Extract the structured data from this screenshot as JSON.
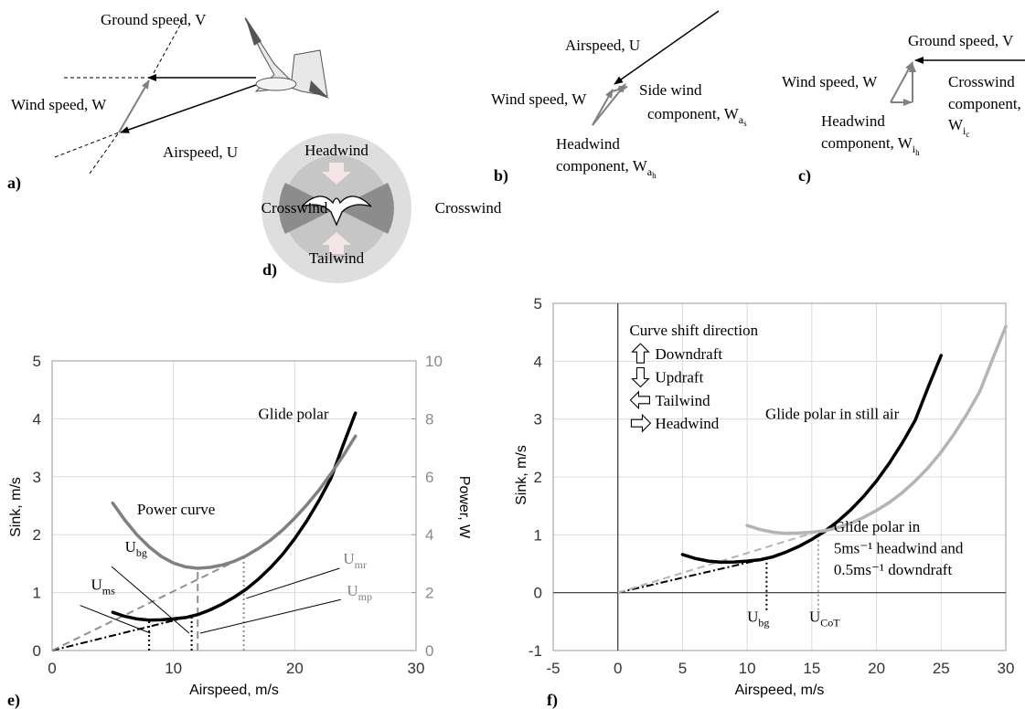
{
  "panels": {
    "a": "a)",
    "b": "b)",
    "c": "c)",
    "d": "d)"
  },
  "diagram_a": {
    "ground_speed": "Ground speed, V",
    "wind_speed": "Wind speed, W",
    "airspeed": "Airspeed, U"
  },
  "diagram_b": {
    "airspeed": "Airspeed, U",
    "wind_speed": "Wind speed, W",
    "side_wind": [
      "Side wind",
      "component, W"
    ],
    "side_wind_sub": "a",
    "side_wind_subsub": "s",
    "headwind": [
      "Headwind",
      "component, W"
    ],
    "headwind_sub": "a",
    "headwind_subsub": "h"
  },
  "diagram_c": {
    "ground_speed": "Ground speed, V",
    "wind_speed": "Wind speed, W",
    "crosswind": [
      "Crosswind",
      "component,",
      "W"
    ],
    "crosswind_sub": "i",
    "crosswind_subsub": "c",
    "headwind": [
      "Headwind",
      "component, W"
    ],
    "headwind_sub": "i",
    "headwind_subsub": "h"
  },
  "diagram_d": {
    "headwind": "Headwind",
    "crosswind_left": "Crosswind",
    "crosswind_right": "Crosswind",
    "tailwind": "Tailwind"
  },
  "chart_data": [
    {
      "type": "line",
      "panel": "e)",
      "xlabel": "Airspeed, m/s",
      "ylabel": "Sink, m/s",
      "y2label": "Power, W",
      "xlim": [
        0,
        30
      ],
      "xticks": [
        0,
        10,
        20,
        30
      ],
      "ylim": [
        0,
        5
      ],
      "yticks": [
        0,
        1,
        2,
        3,
        4,
        5
      ],
      "y2lim": [
        0,
        10
      ],
      "y2ticks": [
        0,
        2,
        4,
        6,
        8,
        10
      ],
      "grid": true,
      "series": [
        {
          "name": "Glide polar",
          "color": "#000000",
          "x": [
            5,
            6,
            7,
            8,
            9,
            10,
            11,
            12,
            13,
            14,
            15,
            16,
            17,
            18,
            19,
            20,
            21,
            22,
            23,
            24,
            25
          ],
          "values": [
            0.66,
            0.59,
            0.545,
            0.525,
            0.53,
            0.545,
            0.57,
            0.62,
            0.7,
            0.8,
            0.92,
            1.06,
            1.23,
            1.43,
            1.66,
            1.93,
            2.24,
            2.59,
            2.98,
            3.55,
            4.1
          ]
        },
        {
          "name": "Power curve",
          "color": "#808080",
          "axis": "y2",
          "x": [
            5,
            6,
            7,
            8,
            9,
            10,
            11,
            12,
            13,
            14,
            15,
            16,
            17,
            18,
            19,
            20,
            21,
            22,
            23,
            24,
            25
          ],
          "values": [
            5.09,
            4.5,
            3.99,
            3.58,
            3.25,
            3.02,
            2.89,
            2.84,
            2.87,
            2.95,
            3.08,
            3.27,
            3.52,
            3.81,
            4.16,
            4.57,
            5.03,
            5.54,
            6.11,
            6.73,
            7.4
          ]
        }
      ],
      "lines": [
        {
          "x": [
            0,
            11.5
          ],
          "values": [
            0,
            0.595
          ],
          "color": "#000000",
          "dash": "dashdot"
        },
        {
          "x": [
            0,
            15.8
          ],
          "values": [
            0,
            3.23
          ],
          "axis": "y2",
          "color": "#909090",
          "dash": "dashed"
        },
        {
          "x": [
            8,
            8
          ],
          "values": [
            0,
            0.525
          ],
          "color": "#000000",
          "dash": "dotted"
        },
        {
          "x": [
            11.5,
            11.5
          ],
          "values": [
            0,
            0.595
          ],
          "color": "#000000",
          "dash": "dotted"
        },
        {
          "x": [
            12,
            12
          ],
          "values": [
            0,
            2.84
          ],
          "axis": "y2",
          "color": "#909090",
          "dash": "dashed"
        },
        {
          "x": [
            15.8,
            15.8
          ],
          "values": [
            0,
            3.23
          ],
          "axis": "y2",
          "color": "#909090",
          "dash": "dotted"
        }
      ],
      "annotations": [
        {
          "text": "U",
          "sub": "ms",
          "color": "#000000"
        },
        {
          "text": "U",
          "sub": "bg",
          "color": "#000000"
        },
        {
          "text": "U",
          "sub": "mr",
          "color": "#808080"
        },
        {
          "text": "U",
          "sub": "mp",
          "color": "#808080"
        }
      ]
    },
    {
      "type": "line",
      "panel": "f)",
      "xlabel": "Airspeed, m/s",
      "ylabel": "Sink, m/s",
      "xlim": [
        -5,
        30
      ],
      "xticks": [
        -5,
        0,
        5,
        10,
        15,
        20,
        25,
        30
      ],
      "ylim": [
        -1,
        5
      ],
      "yticks": [
        -1,
        0,
        1,
        2,
        3,
        4,
        5
      ],
      "grid": true,
      "zero_lines": true,
      "series": [
        {
          "name": "Glide polar in still air",
          "color": "#000000",
          "x": [
            5,
            6,
            7,
            8,
            9,
            10,
            11,
            12,
            13,
            14,
            15,
            16,
            17,
            18,
            19,
            20,
            21,
            22,
            23,
            24,
            25
          ],
          "values": [
            0.66,
            0.59,
            0.545,
            0.525,
            0.53,
            0.545,
            0.57,
            0.62,
            0.7,
            0.8,
            0.92,
            1.06,
            1.23,
            1.43,
            1.66,
            1.93,
            2.24,
            2.59,
            2.98,
            3.55,
            4.1
          ]
        },
        {
          "name": [
            "Glide polar in",
            "5ms⁻¹ headwind and",
            "0.5ms⁻¹ downdraft"
          ],
          "color": "#b4b4b4",
          "x": [
            10,
            11,
            12,
            13,
            14,
            15,
            16,
            17,
            18,
            19,
            20,
            21,
            22,
            23,
            24,
            25,
            26,
            27,
            28,
            29,
            30
          ],
          "values": [
            1.16,
            1.09,
            1.045,
            1.025,
            1.03,
            1.045,
            1.07,
            1.12,
            1.2,
            1.3,
            1.42,
            1.56,
            1.73,
            1.93,
            2.16,
            2.43,
            2.74,
            3.09,
            3.48,
            4.05,
            4.6
          ]
        }
      ],
      "lines": [
        {
          "x": [
            0,
            11.5
          ],
          "values": [
            0,
            0.595
          ],
          "color": "#000000",
          "dash": "dashdot"
        },
        {
          "x": [
            0,
            15.5
          ],
          "values": [
            0,
            1.06
          ],
          "color": "#b4b4b4",
          "dash": "dashed"
        },
        {
          "x": [
            11.5,
            11.5
          ],
          "values": [
            -0.3,
            0.595
          ],
          "color": "#000000",
          "dash": "dotted"
        },
        {
          "x": [
            15.5,
            15.5
          ],
          "values": [
            -0.3,
            1.06
          ],
          "color": "#a0a0a0",
          "dash": "dotted"
        }
      ],
      "annotations": [
        {
          "text": "U",
          "sub": "bg",
          "color": "#000000"
        },
        {
          "text": "U",
          "sub": "CoT",
          "color": "#000000"
        }
      ],
      "shift_legend": {
        "title": "Curve shift direction",
        "items": [
          "Downdraft",
          "Updraft",
          "Tailwind",
          "Headwind"
        ]
      }
    }
  ]
}
